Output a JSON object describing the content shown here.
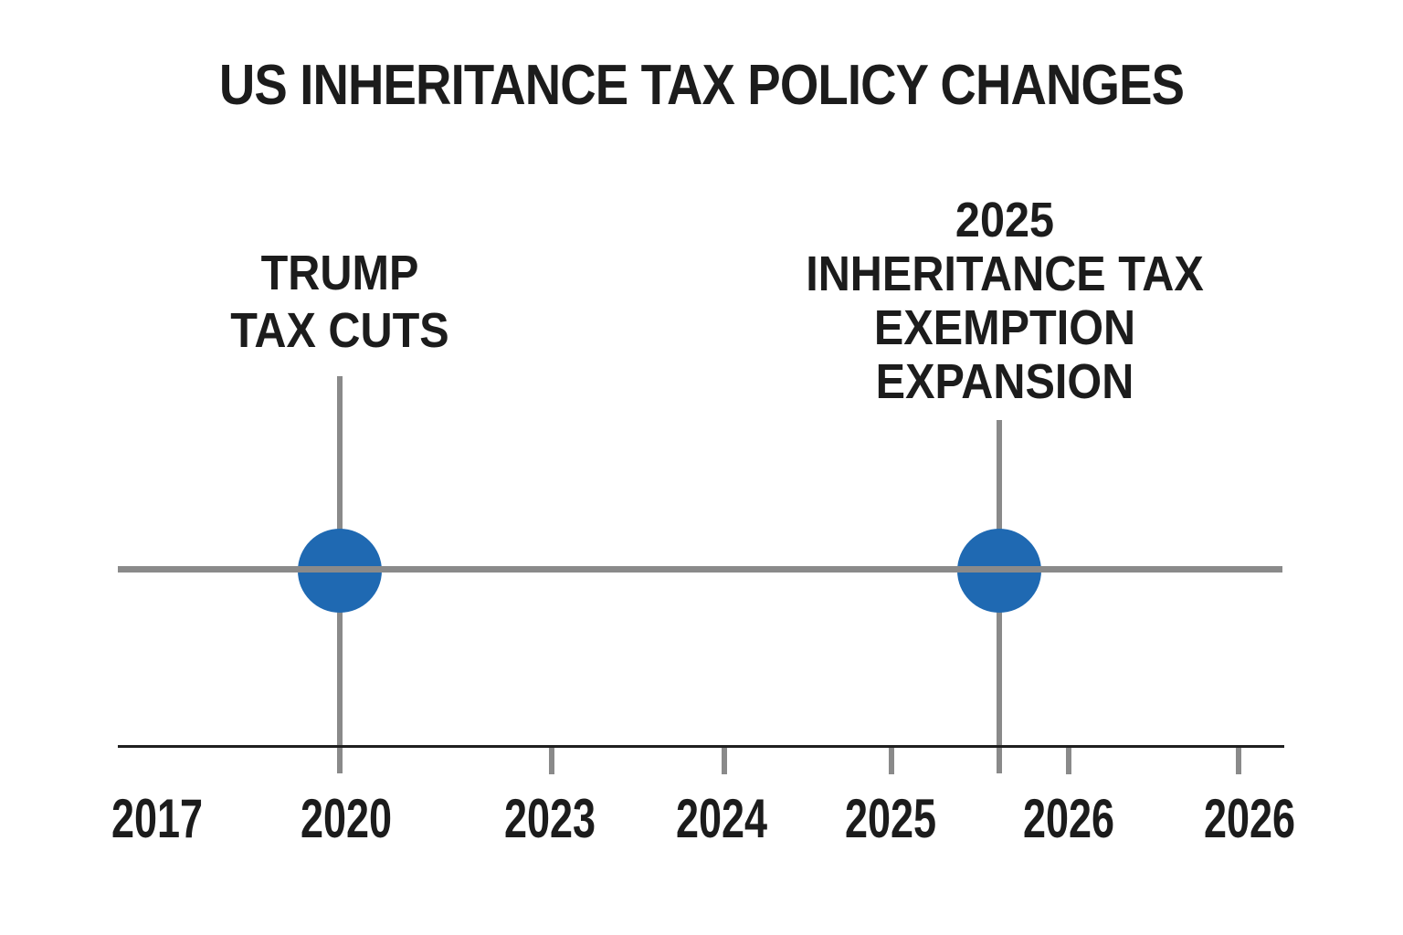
{
  "title": "US INHERITANCE TAX POLICY CHANGES",
  "chart_data": {
    "type": "scatter",
    "subtype": "timeline",
    "title": "US INHERITANCE TAX POLICY CHANGES",
    "x_tick_labels": [
      "2017",
      "2020",
      "2023",
      "2024",
      "2025",
      "2026",
      "2026"
    ],
    "events": [
      {
        "name": "Trump Tax Cuts",
        "label_lines": [
          "TRUMP",
          "TAX CUTS"
        ],
        "label_text": "TRUMP TAX CUTS",
        "position_on_axis": "at 2020 tick"
      },
      {
        "name": "2025 Inheritance Tax Exemption Expansion",
        "label_lines": [
          "2025",
          "INHERITANCE TAX",
          "EXEMPTION",
          "EXPANSION"
        ],
        "label_text": "2025 INHERITANCE TAX EXEMPTION EXPANSION",
        "position_on_axis": "between 2025 and first 2026 tick"
      }
    ],
    "marker": {
      "shape": "circle",
      "color": "#1f69b2"
    },
    "timeline_color": "#8a8a8a",
    "axis_color": "#1f1f1f",
    "text_color": "#1c1c1c",
    "background_color": "#ffffff",
    "grid": false,
    "legend": "none"
  }
}
